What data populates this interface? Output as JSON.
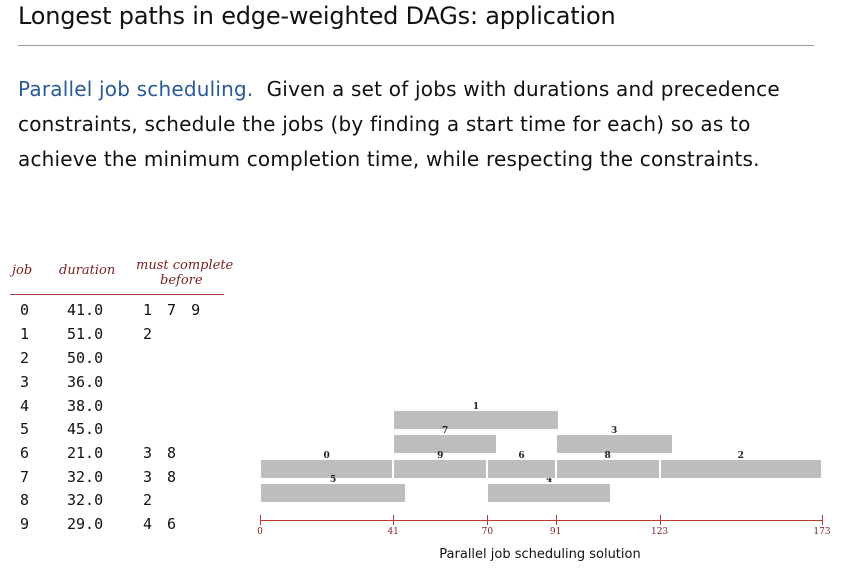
{
  "title": "Longest paths in edge-weighted DAGs:  application",
  "paragraph": {
    "lead": "Parallel job scheduling.",
    "body": "Given a set of jobs with durations and precedence constraints, schedule the jobs (by finding a start time for each) so as to achieve the minimum completion time, while respecting the constraints."
  },
  "table": {
    "headers": {
      "job": "job",
      "duration": "duration",
      "must_line1": "must complete",
      "must_line2": "before"
    },
    "rows": [
      {
        "job": "0",
        "duration": "41.0",
        "before": "1 7 9"
      },
      {
        "job": "1",
        "duration": "51.0",
        "before": "2"
      },
      {
        "job": "2",
        "duration": "50.0",
        "before": ""
      },
      {
        "job": "3",
        "duration": "36.0",
        "before": ""
      },
      {
        "job": "4",
        "duration": "38.0",
        "before": ""
      },
      {
        "job": "5",
        "duration": "45.0",
        "before": ""
      },
      {
        "job": "6",
        "duration": "21.0",
        "before": "3 8"
      },
      {
        "job": "7",
        "duration": "32.0",
        "before": "3 8"
      },
      {
        "job": "8",
        "duration": "32.0",
        "before": "2"
      },
      {
        "job": "9",
        "duration": "29.0",
        "before": "4 6"
      }
    ]
  },
  "schedule": {
    "caption": "Parallel job scheduling solution",
    "ticks": [
      "0",
      "41",
      "70",
      "91",
      "123",
      "173"
    ],
    "jobs": [
      {
        "label": "0",
        "start": 0,
        "end": 41
      },
      {
        "label": "1",
        "start": 41,
        "end": 92
      },
      {
        "label": "2",
        "start": 123,
        "end": 173
      },
      {
        "label": "3",
        "start": 91,
        "end": 127
      },
      {
        "label": "4",
        "start": 70,
        "end": 108
      },
      {
        "label": "5",
        "start": 0,
        "end": 45
      },
      {
        "label": "6",
        "start": 70,
        "end": 91
      },
      {
        "label": "7",
        "start": 41,
        "end": 73
      },
      {
        "label": "8",
        "start": 91,
        "end": 123
      },
      {
        "label": "9",
        "start": 41,
        "end": 70
      }
    ]
  }
}
